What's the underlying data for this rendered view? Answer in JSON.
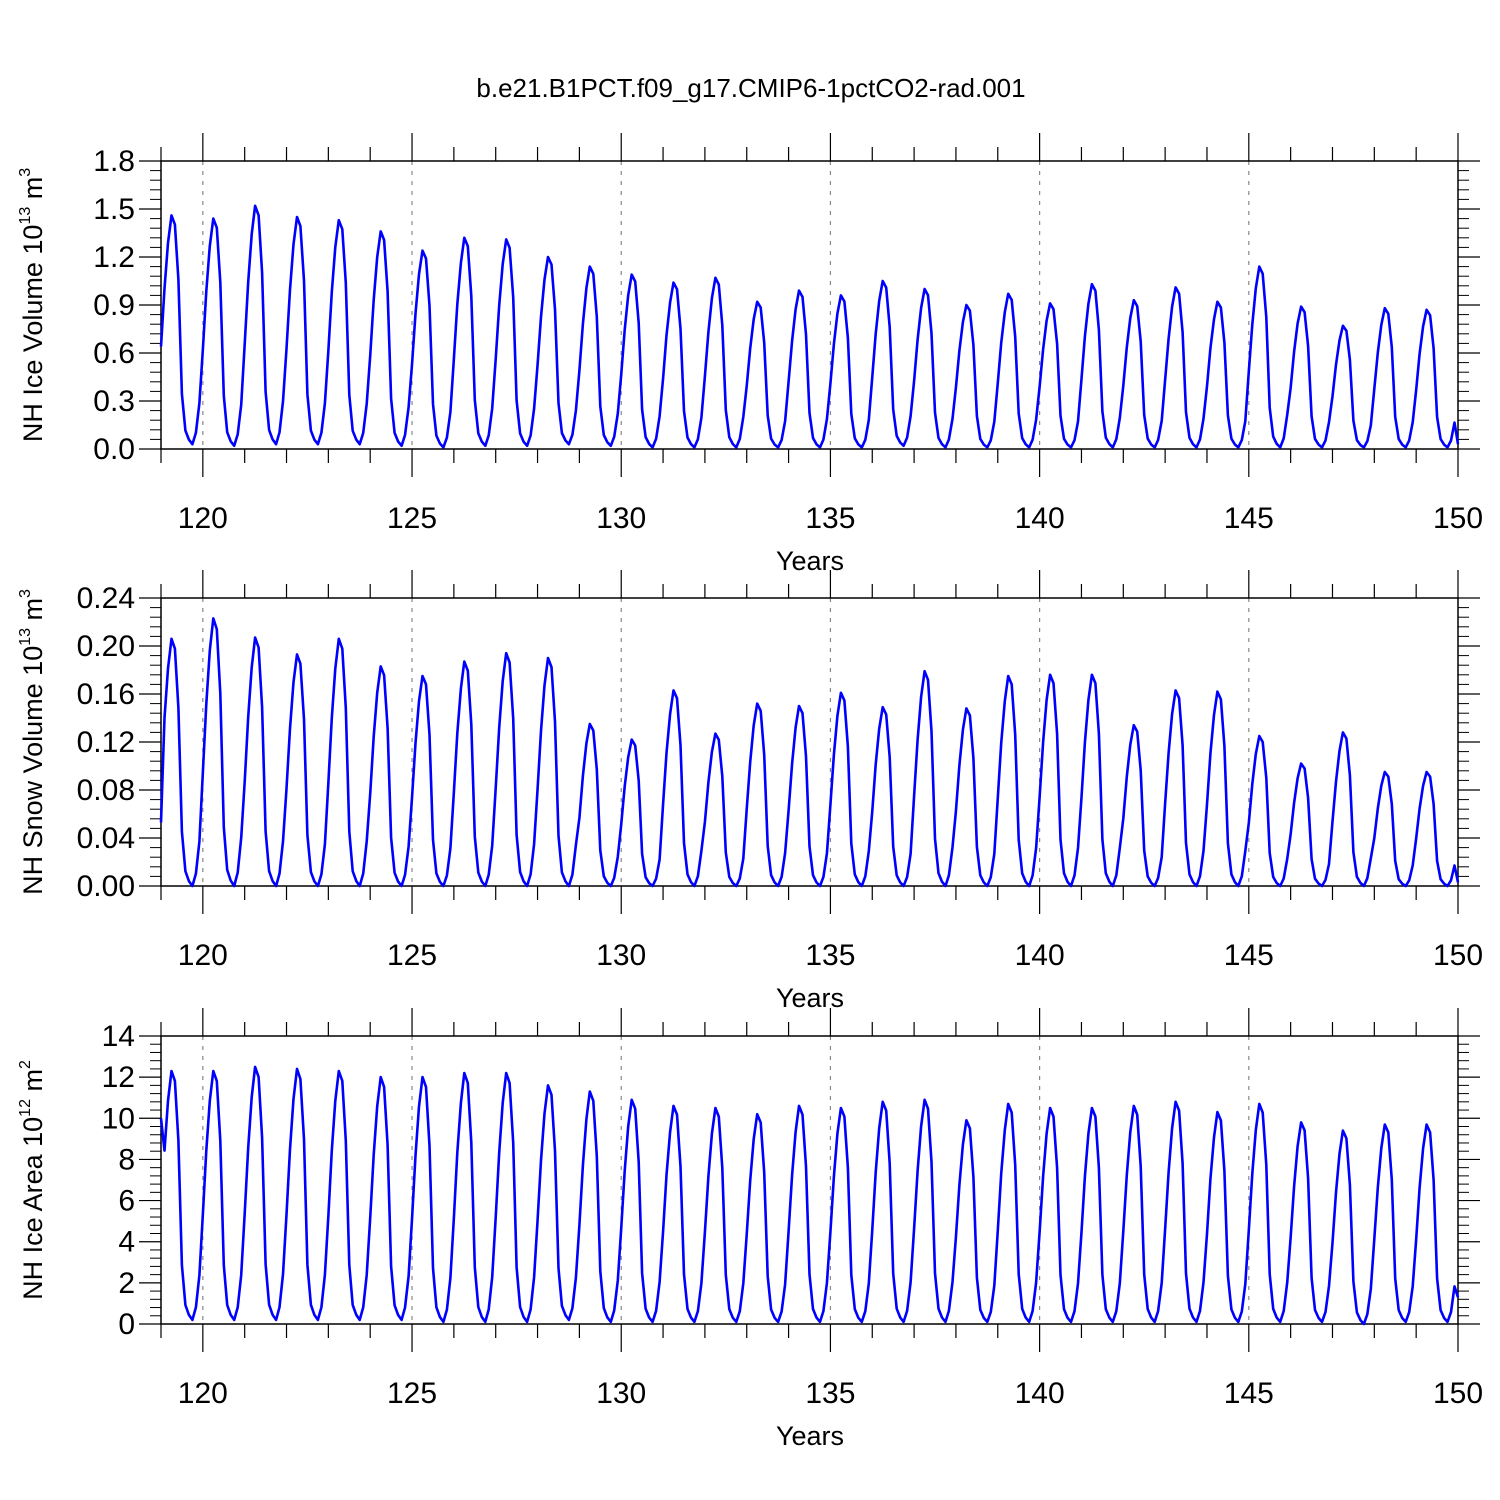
{
  "title": "b.e21.B1PCT.f09_g17.CMIP6-1pctCO2-rad.001",
  "chart_data": [
    {
      "type": "line",
      "ylabel": "NH Ice Volume 10",
      "ylabel_exp": "13",
      "ylabel_unit": " m",
      "ylabel_unit_exp": "3",
      "xlabel": "Years",
      "xlim": [
        119.0,
        150.0
      ],
      "ylim": [
        0.0,
        1.8
      ],
      "x_ticks": [
        "120",
        "125",
        "130",
        "135",
        "140",
        "145",
        "150"
      ],
      "y_ticks": [
        "0.0",
        "0.3",
        "0.6",
        "0.9",
        "1.2",
        "1.5",
        "1.8"
      ],
      "grid": "vertical dashed at major x ticks",
      "line_color": "#0000ff",
      "annual_peaks": [
        1.46,
        1.44,
        1.52,
        1.45,
        1.43,
        1.36,
        1.24,
        1.32,
        1.31,
        1.2,
        1.14,
        1.09,
        1.04,
        1.07,
        0.92,
        0.99,
        0.96,
        1.05,
        1.0,
        0.9,
        0.97,
        0.91,
        1.03,
        0.93,
        1.01,
        0.92,
        1.14,
        0.89,
        0.77,
        0.88,
        0.87
      ],
      "annual_mins": [
        0.03,
        0.02,
        0.03,
        0.03,
        0.03,
        0.02,
        0.01,
        0.02,
        0.02,
        0.03,
        0.02,
        0.01,
        0.01,
        0.01,
        0.01,
        0.01,
        0.01,
        0.02,
        0.01,
        0.01,
        0.01,
        0.01,
        0.01,
        0.01,
        0.01,
        0.01,
        0.01,
        0.01,
        0.01,
        0.01,
        0.01
      ],
      "start_value": 0.64,
      "end_value": 0.03
    },
    {
      "type": "line",
      "ylabel": "NH Snow Volume 10",
      "ylabel_exp": "13",
      "ylabel_unit": " m",
      "ylabel_unit_exp": "3",
      "xlabel": "Years",
      "xlim": [
        119.0,
        150.0
      ],
      "ylim": [
        0.0,
        0.24
      ],
      "x_ticks": [
        "120",
        "125",
        "130",
        "135",
        "140",
        "145",
        "150"
      ],
      "y_ticks": [
        "0.00",
        "0.04",
        "0.08",
        "0.12",
        "0.16",
        "0.20",
        "0.24"
      ],
      "grid": "vertical dashed at major x ticks",
      "line_color": "#0000ff",
      "annual_peaks": [
        0.206,
        0.223,
        0.207,
        0.193,
        0.206,
        0.183,
        0.175,
        0.187,
        0.194,
        0.19,
        0.135,
        0.122,
        0.163,
        0.127,
        0.152,
        0.15,
        0.161,
        0.149,
        0.179,
        0.148,
        0.175,
        0.176,
        0.176,
        0.134,
        0.163,
        0.162,
        0.125,
        0.102,
        0.128,
        0.095,
        0.095
      ],
      "annual_mins": [
        0.0,
        0.0,
        0.0,
        0.0,
        0.0,
        0.0,
        0.0,
        0.0,
        0.0,
        0.0,
        0.0,
        0.0,
        0.0,
        0.0,
        0.0,
        0.0,
        0.0,
        0.0,
        0.0,
        0.0,
        0.0,
        0.0,
        0.0,
        0.0,
        0.0,
        0.0,
        0.0,
        0.0,
        0.0,
        0.0,
        0.0
      ],
      "start_value": 0.053,
      "end_value": 0.003
    },
    {
      "type": "line",
      "ylabel": "NH Ice Area 10",
      "ylabel_exp": "12",
      "ylabel_unit": " m",
      "ylabel_unit_exp": "2",
      "xlabel": "Years",
      "xlim": [
        119.0,
        150.0
      ],
      "ylim": [
        0,
        14
      ],
      "x_ticks": [
        "120",
        "125",
        "130",
        "135",
        "140",
        "145",
        "150"
      ],
      "y_ticks": [
        "0",
        "2",
        "4",
        "6",
        "8",
        "10",
        "12",
        "14"
      ],
      "grid": "vertical dashed at major x ticks",
      "line_color": "#0000ff",
      "annual_peaks": [
        12.3,
        12.3,
        12.5,
        12.4,
        12.3,
        12.0,
        12.0,
        12.2,
        12.2,
        11.6,
        11.3,
        10.9,
        10.6,
        10.5,
        10.2,
        10.6,
        10.5,
        10.8,
        10.9,
        9.9,
        10.7,
        10.5,
        10.5,
        10.6,
        10.8,
        10.3,
        10.7,
        9.8,
        9.4,
        9.7,
        9.7
      ],
      "annual_mins": [
        0.2,
        0.2,
        0.2,
        0.2,
        0.2,
        0.2,
        0.1,
        0.1,
        0.1,
        0.2,
        0.1,
        0.1,
        0.1,
        0.1,
        0.1,
        0.1,
        0.1,
        0.1,
        0.1,
        0.1,
        0.1,
        0.1,
        0.1,
        0.1,
        0.1,
        0.1,
        0.1,
        0.1,
        0.0,
        0.1,
        0.1
      ],
      "start_value": 10.0,
      "end_value": 1.3
    }
  ]
}
